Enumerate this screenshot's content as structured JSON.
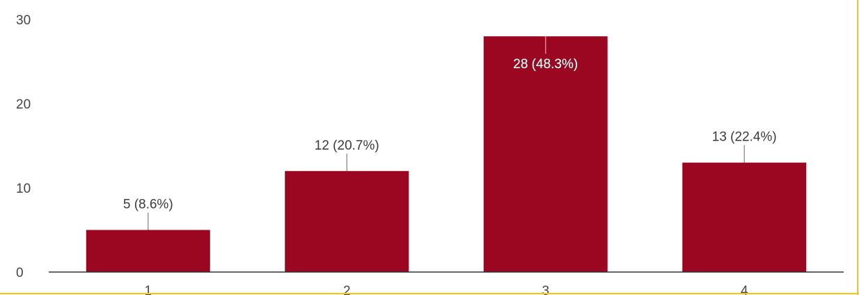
{
  "chart_data": {
    "type": "bar",
    "categories": [
      "1",
      "2",
      "3",
      "4"
    ],
    "values": [
      5,
      12,
      28,
      13
    ],
    "data_labels": [
      "5 (8.6%)",
      "12 (20.7%)",
      "28 (48.3%)",
      "13 (22.4%)"
    ],
    "yticks": [
      "0",
      "10",
      "20",
      "30"
    ],
    "ylim": [
      0,
      30
    ],
    "grid": false,
    "legend": "none",
    "bar_color": "#9b0620",
    "axis_color": "#333333",
    "frame_accent_color": "#f5c518"
  }
}
